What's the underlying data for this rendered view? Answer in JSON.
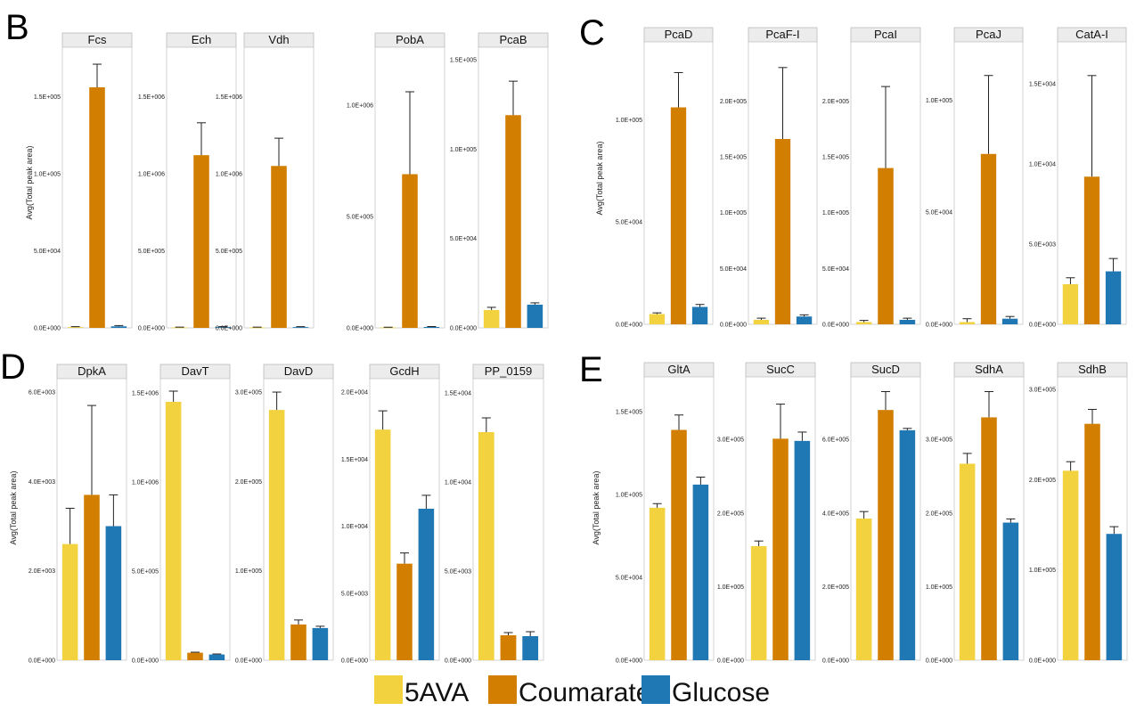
{
  "legend": {
    "items": [
      {
        "label": "5AVA",
        "color": "#F2D23E"
      },
      {
        "label": "Coumarate",
        "color": "#D27E00"
      },
      {
        "label": "Glucose",
        "color": "#1F77B4"
      }
    ]
  },
  "chart_data": [
    {
      "panel": "B",
      "type": "bar",
      "ylabel": "Avg(Total peak area)",
      "categories": [
        "5AVA",
        "Coumarate",
        "Glucose"
      ],
      "facets": [
        {
          "title": "Fcs",
          "ylim": [
            0,
            182000
          ],
          "ticks": [
            0,
            50000,
            100000,
            150000
          ],
          "tick_labels": [
            "0.0E+000",
            "5.0E+004",
            "1.0E+005",
            "1.5E+005"
          ],
          "values": [
            500,
            156000,
            1000
          ],
          "errors": [
            300,
            15000,
            500
          ]
        },
        {
          "title": "Ech",
          "ylim": [
            0,
            1820000
          ],
          "ticks": [
            0,
            500000,
            1000000,
            1500000
          ],
          "tick_labels": [
            "0.0E+000",
            "5.0E+005",
            "1.0E+006",
            "1.5E+006"
          ],
          "values": [
            3000,
            1120000,
            5000
          ],
          "errors": [
            2000,
            210000,
            3000
          ]
        },
        {
          "title": "Vdh",
          "ylim": [
            0,
            1820000
          ],
          "ticks": [
            0,
            500000,
            1000000,
            1500000
          ],
          "tick_labels": [
            "0.0E+000",
            "5.0E+005",
            "1.0E+006",
            "1.5E+006"
          ],
          "values": [
            3000,
            1050000,
            5000
          ],
          "errors": [
            2000,
            180000,
            3000
          ]
        },
        {
          "title": "PobA",
          "ylim": [
            0,
            1260000
          ],
          "ticks": [
            0,
            500000,
            1000000
          ],
          "tick_labels": [
            "0.0E+000",
            "5.0E+005",
            "1.0E+006"
          ],
          "values": [
            2000,
            690000,
            4000
          ],
          "errors": [
            1000,
            370000,
            2000
          ]
        },
        {
          "title": "PcaB",
          "ylim": [
            0,
            157000
          ],
          "ticks": [
            0,
            50000,
            100000,
            150000
          ],
          "tick_labels": [
            "0.0E+000",
            "5.0E+004",
            "1.0E+005",
            "1.5E+005"
          ],
          "values": [
            10000,
            119000,
            13000
          ],
          "errors": [
            1500,
            19000,
            1000
          ]
        }
      ]
    },
    {
      "panel": "C",
      "type": "bar",
      "ylabel": "Avg(Total peak area)",
      "categories": [
        "5AVA",
        "Coumarate",
        "Glucose"
      ],
      "facets": [
        {
          "title": "PcaD",
          "ylim": [
            0,
            138000
          ],
          "ticks": [
            0,
            50000,
            100000
          ],
          "tick_labels": [
            "0.0E+000",
            "5.0E+004",
            "1.0E+005"
          ],
          "values": [
            5000,
            106000,
            8500
          ],
          "errors": [
            600,
            17000,
            1200
          ]
        },
        {
          "title": "PcaF-I",
          "ylim": [
            0,
            253000
          ],
          "ticks": [
            0,
            50000,
            100000,
            150000,
            200000
          ],
          "tick_labels": [
            "0.0E+000",
            "5.0E+004",
            "1.0E+005",
            "1.5E+005",
            "2.0E+005"
          ],
          "values": [
            4000,
            166000,
            7000
          ],
          "errors": [
            1500,
            64000,
            1500
          ]
        },
        {
          "title": "PcaI",
          "ylim": [
            0,
            253000
          ],
          "ticks": [
            0,
            50000,
            100000,
            150000,
            200000
          ],
          "tick_labels": [
            "0.0E+000",
            "5.0E+004",
            "1.0E+005",
            "1.5E+005",
            "2.0E+005"
          ],
          "values": [
            2000,
            140000,
            4000
          ],
          "errors": [
            1500,
            73000,
            1500
          ]
        },
        {
          "title": "PcaJ",
          "ylim": [
            0,
            126000
          ],
          "ticks": [
            0,
            50000,
            100000
          ],
          "tick_labels": [
            "0.0E+000",
            "5.0E+004",
            "1.0E+005"
          ],
          "values": [
            1000,
            76000,
            2500
          ],
          "errors": [
            1500,
            35000,
            1000
          ]
        },
        {
          "title": "CatA-I",
          "ylim": [
            0,
            17600
          ],
          "ticks": [
            0,
            5000,
            10000,
            15000
          ],
          "tick_labels": [
            "0.0E+000",
            "5.0E+003",
            "1.0E+004",
            "1.5E+004"
          ],
          "values": [
            2500,
            9200,
            3300
          ],
          "errors": [
            400,
            6300,
            800
          ]
        }
      ]
    },
    {
      "panel": "D",
      "type": "bar",
      "ylabel": "Avg(Total peak area)",
      "categories": [
        "5AVA",
        "Coumarate",
        "Glucose"
      ],
      "facets": [
        {
          "title": "DpkA",
          "ylim": [
            0,
            6300
          ],
          "ticks": [
            0,
            2000,
            4000,
            6000
          ],
          "tick_labels": [
            "0.0E+000",
            "2.0E+003",
            "4.0E+003",
            "6.0E+003"
          ],
          "values": [
            2600,
            3700,
            3000
          ],
          "errors": [
            800,
            2000,
            700
          ]
        },
        {
          "title": "DavT",
          "ylim": [
            0,
            1580000
          ],
          "ticks": [
            0,
            500000,
            1000000,
            1500000
          ],
          "tick_labels": [
            "0.0E+000",
            "5.0E+005",
            "1.0E+006",
            "1.5E+006"
          ],
          "values": [
            1450000,
            42000,
            32000
          ],
          "errors": [
            60000,
            3000,
            3000
          ]
        },
        {
          "title": "DavD",
          "ylim": [
            0,
            315000
          ],
          "ticks": [
            0,
            100000,
            200000,
            300000
          ],
          "tick_labels": [
            "0.0E+000",
            "1.0E+005",
            "2.0E+005",
            "3.0E+005"
          ],
          "values": [
            280000,
            40000,
            36000
          ],
          "errors": [
            20000,
            5000,
            2000
          ]
        },
        {
          "title": "GcdH",
          "ylim": [
            0,
            21000
          ],
          "ticks": [
            0,
            5000,
            10000,
            15000,
            20000
          ],
          "tick_labels": [
            "0.0E+000",
            "5.0E+003",
            "1.0E+004",
            "1.5E+004",
            "2.0E+004"
          ],
          "values": [
            17200,
            7200,
            11300
          ],
          "errors": [
            1400,
            800,
            1000
          ]
        },
        {
          "title": "PP_0159",
          "ylim": [
            0,
            15800
          ],
          "ticks": [
            0,
            5000,
            10000,
            15000
          ],
          "tick_labels": [
            "0.0E+000",
            "5.0E+003",
            "1.0E+004",
            "1.5E+004"
          ],
          "values": [
            12800,
            1400,
            1350
          ],
          "errors": [
            800,
            150,
            250
          ]
        }
      ]
    },
    {
      "panel": "E",
      "type": "bar",
      "ylabel": "Avg(Total peak area)",
      "categories": [
        "5AVA",
        "Coumarate",
        "Glucose"
      ],
      "facets": [
        {
          "title": "GltA",
          "ylim": [
            0,
            171000
          ],
          "ticks": [
            0,
            50000,
            100000,
            150000
          ],
          "tick_labels": [
            "0.0E+000",
            "5.0E+004",
            "1.0E+005",
            "1.5E+005"
          ],
          "values": [
            92000,
            139000,
            106000
          ],
          "errors": [
            2500,
            9000,
            4500
          ]
        },
        {
          "title": "SucC",
          "ylim": [
            0,
            385000
          ],
          "ticks": [
            0,
            100000,
            200000,
            300000
          ],
          "tick_labels": [
            "0.0E+000",
            "1.0E+005",
            "2.0E+005",
            "3.0E+005"
          ],
          "values": [
            155000,
            301000,
            298000
          ],
          "errors": [
            7000,
            47000,
            12000
          ]
        },
        {
          "title": "SucD",
          "ylim": [
            0,
            770000
          ],
          "ticks": [
            0,
            200000,
            400000,
            600000
          ],
          "tick_labels": [
            "0.0E+000",
            "2.0E+005",
            "4.0E+005",
            "6.0E+005"
          ],
          "values": [
            385000,
            680000,
            625000
          ],
          "errors": [
            19000,
            50000,
            5000
          ]
        },
        {
          "title": "SdhA",
          "ylim": [
            0,
            385000
          ],
          "ticks": [
            0,
            100000,
            200000,
            300000
          ],
          "tick_labels": [
            "0.0E+000",
            "1.0E+005",
            "2.0E+005",
            "3.0E+005"
          ],
          "values": [
            267000,
            330000,
            187000
          ],
          "errors": [
            14000,
            35000,
            5000
          ]
        },
        {
          "title": "SdhB",
          "ylim": [
            0,
            314000
          ],
          "ticks": [
            0,
            100000,
            200000,
            300000
          ],
          "tick_labels": [
            "0.0E+000",
            "1.0E+005",
            "2.0E+005",
            "3.0E+005"
          ],
          "values": [
            210000,
            262000,
            140000
          ],
          "errors": [
            10000,
            16000,
            8000
          ]
        }
      ]
    }
  ]
}
